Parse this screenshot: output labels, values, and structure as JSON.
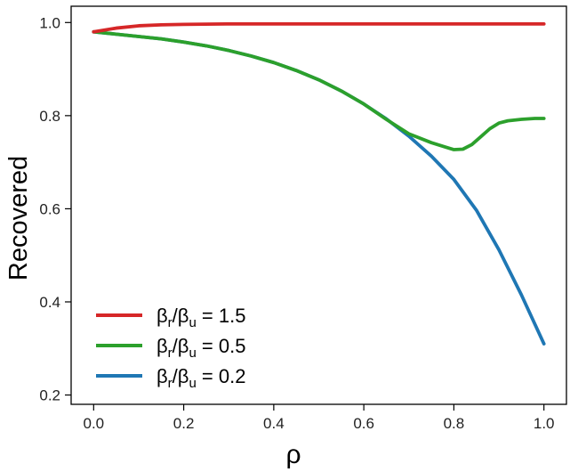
{
  "chart_data": {
    "type": "line",
    "title": "",
    "xlabel": "ρ",
    "ylabel": "Recovered",
    "xlim": [
      -0.05,
      1.05
    ],
    "ylim": [
      0.18,
      1.035
    ],
    "xticks": [
      0.0,
      0.2,
      0.4,
      0.6,
      0.8,
      1.0
    ],
    "xtick_labels": [
      "0.0",
      "0.2",
      "0.4",
      "0.6",
      "0.8",
      "1.0"
    ],
    "yticks": [
      0.2,
      0.4,
      0.6,
      0.8,
      1.0
    ],
    "ytick_labels": [
      "0.2",
      "0.4",
      "0.6",
      "0.8",
      "1.0"
    ],
    "grid": false,
    "legend_position": "bottom-left",
    "series": [
      {
        "name_base": "β",
        "name_sub1": "r",
        "name_mid": "/β",
        "name_sub2": "u",
        "name_value": " = 1.5",
        "color": "#d62728",
        "x": [
          0.0,
          0.05,
          0.1,
          0.15,
          0.2,
          0.3,
          0.4,
          0.5,
          0.6,
          0.7,
          0.8,
          0.9,
          1.0
        ],
        "y": [
          0.98,
          0.988,
          0.993,
          0.995,
          0.996,
          0.997,
          0.997,
          0.997,
          0.997,
          0.997,
          0.997,
          0.997,
          0.997
        ]
      },
      {
        "name_base": "β",
        "name_sub1": "r",
        "name_mid": "/β",
        "name_sub2": "u",
        "name_value": " = 0.5",
        "color": "#2ca02c",
        "x": [
          0.0,
          0.05,
          0.1,
          0.15,
          0.2,
          0.25,
          0.3,
          0.35,
          0.4,
          0.45,
          0.5,
          0.55,
          0.6,
          0.65,
          0.7,
          0.75,
          0.78,
          0.8,
          0.82,
          0.84,
          0.86,
          0.88,
          0.9,
          0.92,
          0.95,
          0.98,
          1.0
        ],
        "y": [
          0.98,
          0.975,
          0.97,
          0.965,
          0.958,
          0.95,
          0.94,
          0.928,
          0.914,
          0.897,
          0.877,
          0.853,
          0.825,
          0.792,
          0.761,
          0.742,
          0.733,
          0.727,
          0.728,
          0.738,
          0.755,
          0.772,
          0.784,
          0.789,
          0.792,
          0.794,
          0.794
        ]
      },
      {
        "name_base": "β",
        "name_sub1": "r",
        "name_mid": "/β",
        "name_sub2": "u",
        "name_value": " = 0.2",
        "color": "#1f77b4",
        "x": [
          0.0,
          0.05,
          0.1,
          0.15,
          0.2,
          0.25,
          0.3,
          0.35,
          0.4,
          0.45,
          0.5,
          0.55,
          0.6,
          0.65,
          0.7,
          0.75,
          0.8,
          0.85,
          0.9,
          0.95,
          1.0
        ],
        "y": [
          0.98,
          0.975,
          0.97,
          0.965,
          0.958,
          0.95,
          0.94,
          0.928,
          0.914,
          0.897,
          0.877,
          0.853,
          0.825,
          0.793,
          0.756,
          0.713,
          0.663,
          0.597,
          0.512,
          0.415,
          0.31
        ]
      }
    ]
  }
}
